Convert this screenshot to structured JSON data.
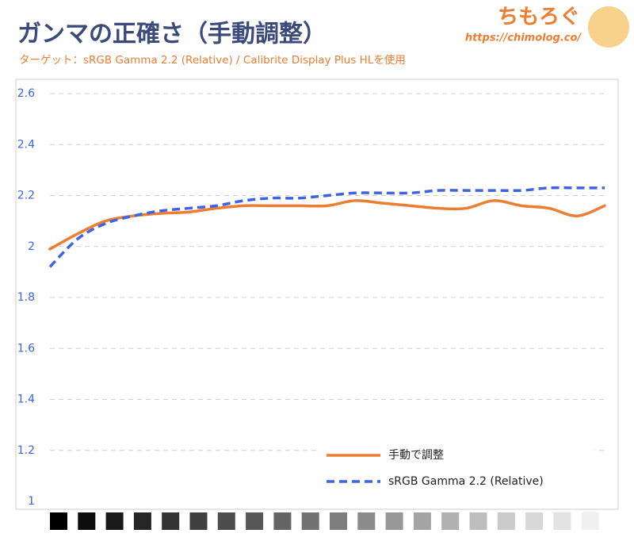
{
  "chart_data": {
    "type": "line",
    "title": "ガンマの正確さ（手動調整）",
    "subtitle": "ターゲット：sRGB Gamma 2.2 (Relative) / Calibrite Display Plus HLを使用",
    "logo": "ちもろぐ",
    "url": "https://chimolog.co/",
    "categories": [
      null,
      null,
      null,
      null,
      null,
      null,
      null,
      null,
      null,
      null,
      null,
      null,
      null,
      null,
      null,
      null,
      null,
      null,
      null,
      null,
      null
    ],
    "series": [
      {
        "name": "手動で調整",
        "color": "#ed7d31",
        "style": "solid",
        "values": [
          1.99,
          2.05,
          2.1,
          2.12,
          2.13,
          2.135,
          2.15,
          2.16,
          2.16,
          2.16,
          2.16,
          2.18,
          2.17,
          2.16,
          2.15,
          2.15,
          2.18,
          2.16,
          2.15,
          2.12,
          2.16
        ]
      },
      {
        "name": "sRGB Gamma 2.2 (Relative)",
        "color": "#3c64e6",
        "style": "dashed",
        "values": [
          1.92,
          2.03,
          2.09,
          2.12,
          2.14,
          2.15,
          2.16,
          2.18,
          2.19,
          2.19,
          2.2,
          2.21,
          2.21,
          2.21,
          2.22,
          2.22,
          2.22,
          2.22,
          2.23,
          2.23,
          2.23
        ]
      }
    ],
    "ylim": [
      1,
      2.6
    ],
    "yticks": [
      1,
      1.2,
      1.4,
      1.6,
      1.8,
      2,
      2.2,
      2.4,
      2.6
    ],
    "grid": true,
    "legend": "lower right"
  }
}
